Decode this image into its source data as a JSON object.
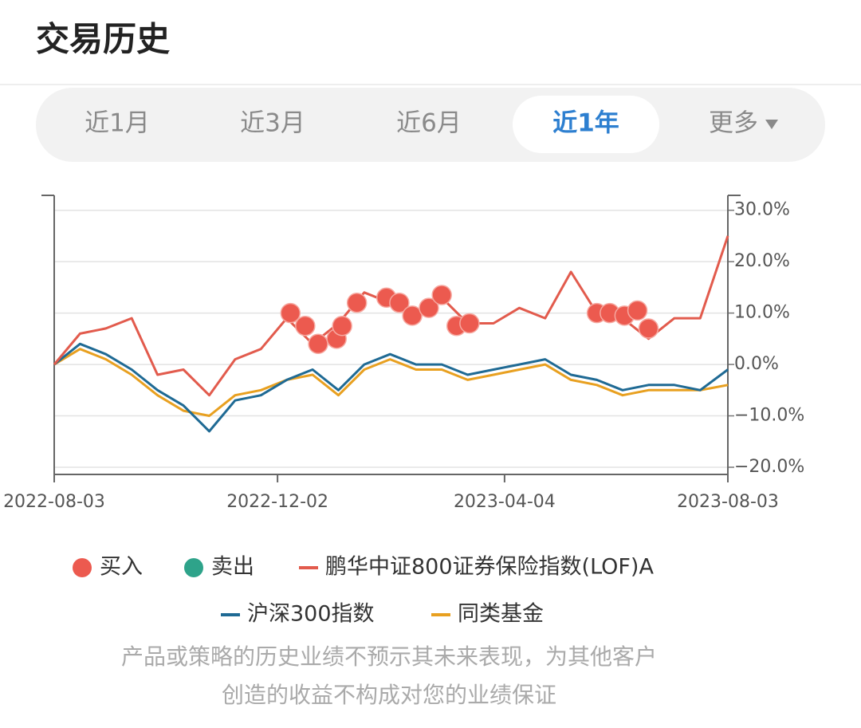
{
  "header": {
    "title": "交易历史"
  },
  "tabs": [
    {
      "label": "近1月",
      "selected": false
    },
    {
      "label": "近3月",
      "selected": false
    },
    {
      "label": "近6月",
      "selected": false
    },
    {
      "label": "近1年",
      "selected": true
    },
    {
      "label": "更多",
      "selected": false
    }
  ],
  "chart_data": {
    "type": "line",
    "x": [
      "2022-08-03",
      "2022-08-17",
      "2022-08-31",
      "2022-09-14",
      "2022-09-28",
      "2022-10-12",
      "2022-10-26",
      "2022-11-09",
      "2022-11-23",
      "2022-12-07",
      "2022-12-21",
      "2023-01-04",
      "2023-01-18",
      "2023-02-01",
      "2023-02-15",
      "2023-03-01",
      "2023-03-15",
      "2023-03-29",
      "2023-04-12",
      "2023-04-26",
      "2023-05-10",
      "2023-05-24",
      "2023-06-07",
      "2023-06-21",
      "2023-07-05",
      "2023-07-19",
      "2023-08-03"
    ],
    "xlim": [
      "2022-08-03",
      "2023-08-03"
    ],
    "xticks": [
      "2022-08-03",
      "2022-12-02",
      "2023-04-04",
      "2023-08-03"
    ],
    "ylim": [
      -21.4,
      32.9
    ],
    "yticks": [
      {
        "value": -20,
        "label": "−20.0%"
      },
      {
        "value": -10,
        "label": "−10.0%"
      },
      {
        "value": 0,
        "label": "0.0%"
      },
      {
        "value": 10,
        "label": "10.0%"
      },
      {
        "value": 20,
        "label": "20.0%"
      },
      {
        "value": 30,
        "label": "30.0%"
      }
    ],
    "grid": true,
    "series": [
      {
        "name": "买入",
        "type": "scatter",
        "color": "#ec5a4f",
        "x": [
          "2022-12-09",
          "2022-12-17",
          "2022-12-24",
          "2023-01-03",
          "2023-01-06",
          "2023-01-14",
          "2023-01-30",
          "2023-02-06",
          "2023-02-13",
          "2023-02-22",
          "2023-03-01",
          "2023-03-09",
          "2023-03-16",
          "2023-05-24",
          "2023-05-31",
          "2023-06-08",
          "2023-06-15",
          "2023-06-21"
        ],
        "values": [
          10,
          7.5,
          4,
          5,
          7.5,
          12,
          13,
          12,
          9.5,
          11,
          13.5,
          7.5,
          8,
          10,
          10,
          9.5,
          10.5,
          7
        ]
      },
      {
        "name": "卖出",
        "type": "scatter",
        "color": "#2ea38a",
        "x": [],
        "values": []
      },
      {
        "name": "鹏华中证800证券保险指数(LOF)A",
        "type": "line",
        "color": "#e25b4d",
        "values": [
          0,
          6,
          7,
          9,
          -2,
          -1,
          -6,
          1,
          3,
          9,
          4,
          8,
          14,
          12,
          10,
          13,
          8,
          8,
          11,
          9,
          18,
          10,
          9,
          5,
          9,
          9,
          25
        ]
      },
      {
        "name": "沪深300指数",
        "type": "line",
        "color": "#1f6a94",
        "values": [
          0,
          4,
          2,
          -1,
          -5,
          -8,
          -13,
          -7,
          -6,
          -3,
          -1,
          -5,
          0,
          2,
          0,
          0,
          -2,
          -1,
          0,
          1,
          -2,
          -3,
          -5,
          -4,
          -4,
          -5,
          -1
        ]
      },
      {
        "name": "同类基金",
        "type": "line",
        "color": "#e8a020",
        "values": [
          0,
          3,
          1,
          -2,
          -6,
          -9,
          -10,
          -6,
          -5,
          -3,
          -2,
          -6,
          -1,
          1,
          -1,
          -1,
          -3,
          -2,
          -1,
          0,
          -3,
          -4,
          -6,
          -5,
          -5,
          -5,
          -4
        ]
      }
    ]
  },
  "disclaimer": [
    "产品或策略的历史业绩不预示其未来表现，为其他客户",
    "创造的收益不构成对您的业绩保证"
  ]
}
